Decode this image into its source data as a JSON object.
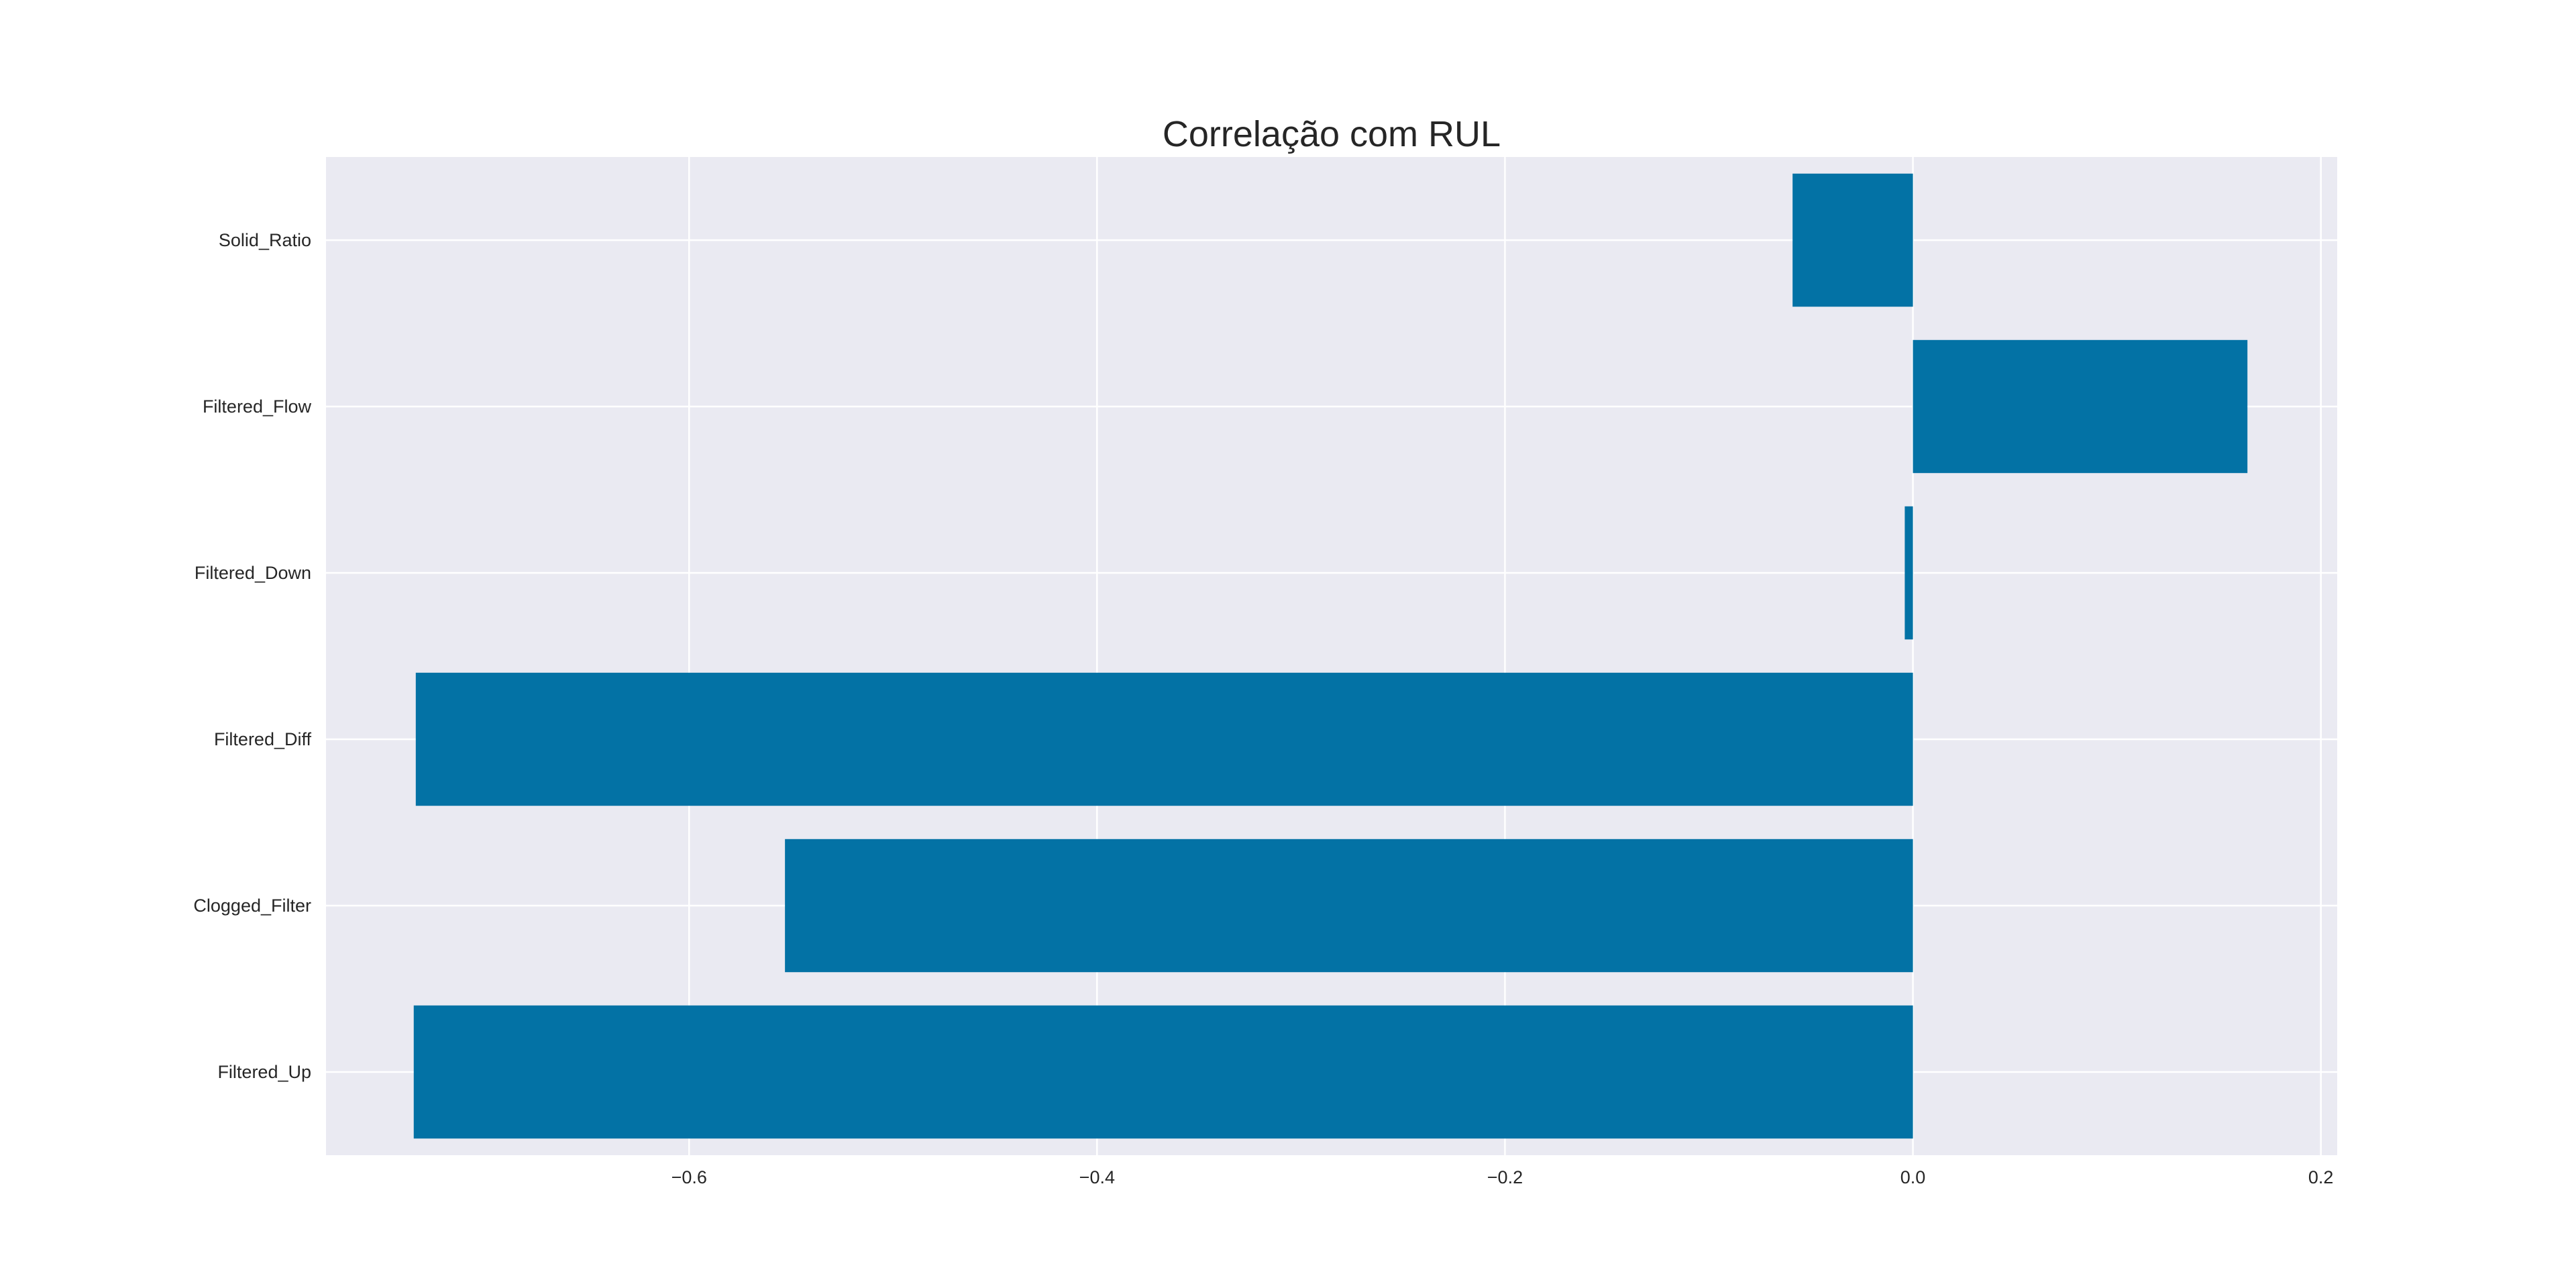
{
  "chart_data": {
    "type": "bar",
    "orientation": "horizontal",
    "title": "Correlação com RUL",
    "xlabel": "",
    "ylabel": "",
    "categories": [
      "Filtered_Up",
      "Clogged_Filter",
      "Filtered_Diff",
      "Filtered_Down",
      "Filtered_Flow",
      "Solid_Ratio"
    ],
    "values": [
      -0.735,
      -0.553,
      -0.734,
      -0.004,
      0.164,
      -0.059
    ],
    "xlim": [
      -0.778,
      0.208
    ],
    "xticks": [
      -0.6,
      -0.4,
      -0.2,
      0.0,
      0.2
    ],
    "xtick_labels": [
      "−0.6",
      "−0.4",
      "−0.2",
      "0.0",
      "0.2"
    ],
    "grid": true,
    "legend": "none",
    "colors": {
      "bar": "#0372a5",
      "plot_background": "#eaeaf2",
      "grid": "#ffffff",
      "text": "#262626"
    }
  }
}
